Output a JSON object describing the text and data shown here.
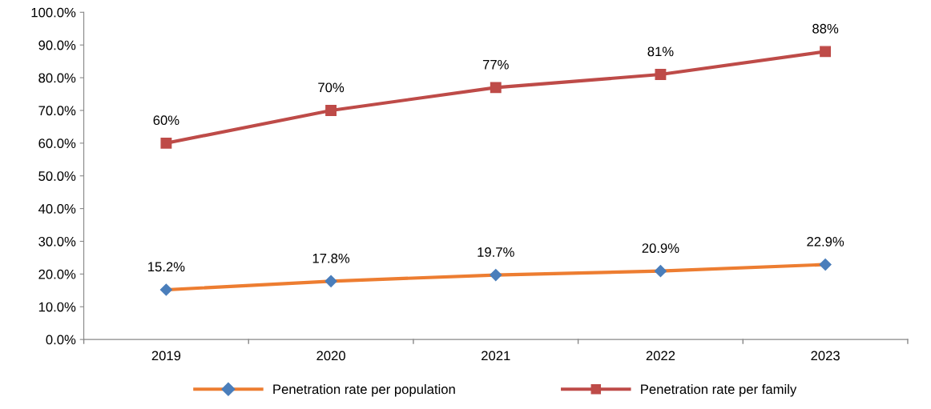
{
  "chart_data": {
    "type": "line",
    "categories": [
      "2019",
      "2020",
      "2021",
      "2022",
      "2023"
    ],
    "series": [
      {
        "name": "Penetration rate per population",
        "color": "#ed7d31",
        "colors": [
          "#4a7ebb",
          "#4a7ebb",
          "#4a7ebb",
          "#4a7ebb",
          "#4a7ebb"
        ],
        "marker": "diamond",
        "values": [
          15.2,
          17.8,
          19.7,
          20.9,
          22.9
        ],
        "value_labels": [
          "15.2%",
          "17.8%",
          "19.7%",
          "20.9%",
          "22.9%"
        ]
      },
      {
        "name": "Penetration rate per family",
        "color": "#be4b48",
        "colors": [
          "#be4b48",
          "#be4b48",
          "#be4b48",
          "#be4b48",
          "#be4b48"
        ],
        "marker": "square",
        "values": [
          60,
          70,
          77,
          81,
          88
        ],
        "value_labels": [
          "60%",
          "70%",
          "77%",
          "81%",
          "88%"
        ]
      }
    ],
    "ylim": [
      0,
      100
    ],
    "yticks": [
      {
        "value": 0,
        "label": "0.0%"
      },
      {
        "value": 10,
        "label": "10.0%"
      },
      {
        "value": 20,
        "label": "20.0%"
      },
      {
        "value": 30,
        "label": "30.0%"
      },
      {
        "value": 40,
        "label": "40.0%"
      },
      {
        "value": 50,
        "label": "50.0%"
      },
      {
        "value": 60,
        "label": "60.0%"
      },
      {
        "value": 70,
        "label": "70.0%"
      },
      {
        "value": 80,
        "label": "80.0%"
      },
      {
        "value": 90,
        "label": "90.0%"
      },
      {
        "value": 100,
        "label": "100.0%"
      }
    ],
    "grid": false,
    "legend": "bottom",
    "line_style": "solid"
  }
}
